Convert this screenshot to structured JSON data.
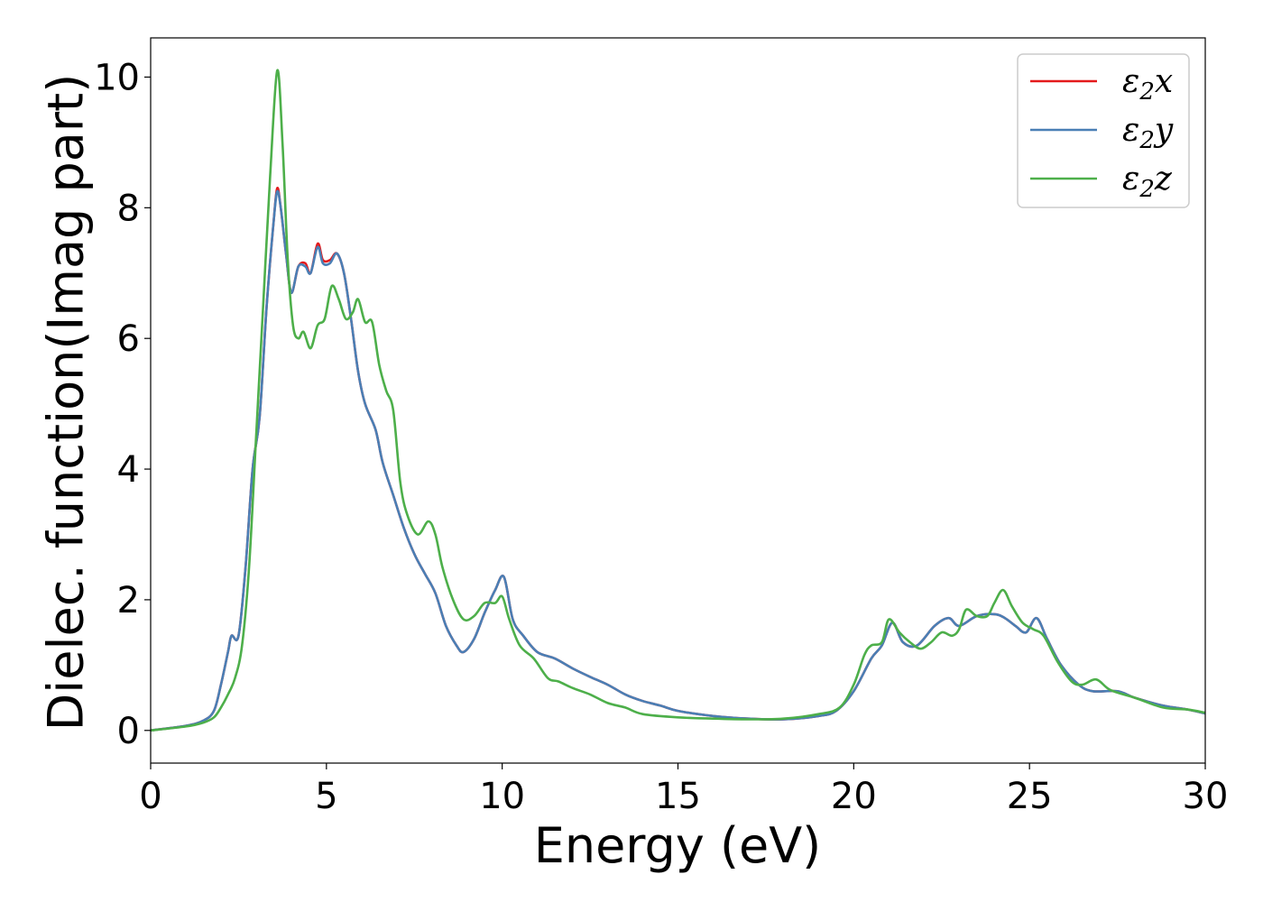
{
  "chart_data": {
    "type": "line",
    "title": "",
    "xlabel": "Energy (eV)",
    "ylabel": "Dielec. function(Imag part)",
    "xlim": [
      0,
      30
    ],
    "ylim": [
      -0.5,
      10.6
    ],
    "x_ticks": [
      "0",
      "5",
      "10",
      "15",
      "20",
      "25",
      "30"
    ],
    "y_ticks": [
      "0",
      "2",
      "4",
      "6",
      "8",
      "10"
    ],
    "grid": false,
    "legend_position": "top-right",
    "series": [
      {
        "name": "ε2x",
        "legend_base": "ε",
        "legend_sub": "2",
        "legend_var": "x",
        "color": "#e41a1c",
        "points": [
          [
            0,
            0
          ],
          [
            1.0,
            0.07
          ],
          [
            1.5,
            0.15
          ],
          [
            1.8,
            0.3
          ],
          [
            2.0,
            0.7
          ],
          [
            2.2,
            1.2
          ],
          [
            2.3,
            1.45
          ],
          [
            2.5,
            1.45
          ],
          [
            2.7,
            2.5
          ],
          [
            2.9,
            4.0
          ],
          [
            3.1,
            4.8
          ],
          [
            3.3,
            6.5
          ],
          [
            3.5,
            7.8
          ],
          [
            3.6,
            8.3
          ],
          [
            3.7,
            8.0
          ],
          [
            3.85,
            7.3
          ],
          [
            4.0,
            6.7
          ],
          [
            4.2,
            7.1
          ],
          [
            4.4,
            7.15
          ],
          [
            4.55,
            7.0
          ],
          [
            4.75,
            7.45
          ],
          [
            4.9,
            7.2
          ],
          [
            5.1,
            7.2
          ],
          [
            5.3,
            7.3
          ],
          [
            5.5,
            7.0
          ],
          [
            5.7,
            6.3
          ],
          [
            5.9,
            5.5
          ],
          [
            6.1,
            5.0
          ],
          [
            6.4,
            4.6
          ],
          [
            6.6,
            4.1
          ],
          [
            6.9,
            3.6
          ],
          [
            7.2,
            3.1
          ],
          [
            7.5,
            2.7
          ],
          [
            7.8,
            2.4
          ],
          [
            8.1,
            2.1
          ],
          [
            8.4,
            1.6
          ],
          [
            8.7,
            1.3
          ],
          [
            8.9,
            1.2
          ],
          [
            9.2,
            1.4
          ],
          [
            9.5,
            1.8
          ],
          [
            9.8,
            2.15
          ],
          [
            10.05,
            2.35
          ],
          [
            10.3,
            1.7
          ],
          [
            10.6,
            1.45
          ],
          [
            11.0,
            1.2
          ],
          [
            11.5,
            1.1
          ],
          [
            12.0,
            0.95
          ],
          [
            12.5,
            0.82
          ],
          [
            13.0,
            0.7
          ],
          [
            13.5,
            0.55
          ],
          [
            14.0,
            0.45
          ],
          [
            14.5,
            0.38
          ],
          [
            15.0,
            0.3
          ],
          [
            16.0,
            0.22
          ],
          [
            17.0,
            0.18
          ],
          [
            18.0,
            0.17
          ],
          [
            19.0,
            0.22
          ],
          [
            19.5,
            0.3
          ],
          [
            20.0,
            0.6
          ],
          [
            20.5,
            1.1
          ],
          [
            20.8,
            1.3
          ],
          [
            21.1,
            1.65
          ],
          [
            21.4,
            1.35
          ],
          [
            21.8,
            1.3
          ],
          [
            22.3,
            1.6
          ],
          [
            22.7,
            1.72
          ],
          [
            23.0,
            1.6
          ],
          [
            23.5,
            1.75
          ],
          [
            24.0,
            1.78
          ],
          [
            24.3,
            1.72
          ],
          [
            24.6,
            1.6
          ],
          [
            24.9,
            1.5
          ],
          [
            25.2,
            1.72
          ],
          [
            25.5,
            1.4
          ],
          [
            25.9,
            1.0
          ],
          [
            26.4,
            0.7
          ],
          [
            26.8,
            0.6
          ],
          [
            27.5,
            0.6
          ],
          [
            28.0,
            0.5
          ],
          [
            28.8,
            0.38
          ],
          [
            29.5,
            0.32
          ],
          [
            30.0,
            0.26
          ]
        ]
      },
      {
        "name": "ε2y",
        "legend_base": "ε",
        "legend_sub": "2",
        "legend_var": "y",
        "color": "#4a7fb5",
        "points": [
          [
            0,
            0
          ],
          [
            1.0,
            0.07
          ],
          [
            1.5,
            0.15
          ],
          [
            1.8,
            0.3
          ],
          [
            2.0,
            0.7
          ],
          [
            2.2,
            1.2
          ],
          [
            2.3,
            1.45
          ],
          [
            2.5,
            1.45
          ],
          [
            2.7,
            2.5
          ],
          [
            2.9,
            4.0
          ],
          [
            3.1,
            4.8
          ],
          [
            3.3,
            6.5
          ],
          [
            3.5,
            7.8
          ],
          [
            3.6,
            8.25
          ],
          [
            3.7,
            8.0
          ],
          [
            3.85,
            7.3
          ],
          [
            4.0,
            6.7
          ],
          [
            4.2,
            7.1
          ],
          [
            4.4,
            7.1
          ],
          [
            4.55,
            7.0
          ],
          [
            4.75,
            7.4
          ],
          [
            4.9,
            7.15
          ],
          [
            5.1,
            7.15
          ],
          [
            5.3,
            7.3
          ],
          [
            5.5,
            7.0
          ],
          [
            5.7,
            6.3
          ],
          [
            5.9,
            5.5
          ],
          [
            6.1,
            5.0
          ],
          [
            6.4,
            4.6
          ],
          [
            6.6,
            4.1
          ],
          [
            6.9,
            3.6
          ],
          [
            7.2,
            3.1
          ],
          [
            7.5,
            2.7
          ],
          [
            7.8,
            2.4
          ],
          [
            8.1,
            2.1
          ],
          [
            8.4,
            1.6
          ],
          [
            8.7,
            1.3
          ],
          [
            8.9,
            1.2
          ],
          [
            9.2,
            1.4
          ],
          [
            9.5,
            1.8
          ],
          [
            9.8,
            2.15
          ],
          [
            10.05,
            2.35
          ],
          [
            10.3,
            1.7
          ],
          [
            10.6,
            1.45
          ],
          [
            11.0,
            1.2
          ],
          [
            11.5,
            1.1
          ],
          [
            12.0,
            0.95
          ],
          [
            12.5,
            0.82
          ],
          [
            13.0,
            0.7
          ],
          [
            13.5,
            0.55
          ],
          [
            14.0,
            0.45
          ],
          [
            14.5,
            0.38
          ],
          [
            15.0,
            0.3
          ],
          [
            16.0,
            0.22
          ],
          [
            17.0,
            0.18
          ],
          [
            18.0,
            0.17
          ],
          [
            19.0,
            0.22
          ],
          [
            19.5,
            0.3
          ],
          [
            20.0,
            0.6
          ],
          [
            20.5,
            1.1
          ],
          [
            20.8,
            1.3
          ],
          [
            21.1,
            1.65
          ],
          [
            21.4,
            1.35
          ],
          [
            21.8,
            1.3
          ],
          [
            22.3,
            1.6
          ],
          [
            22.7,
            1.72
          ],
          [
            23.0,
            1.6
          ],
          [
            23.5,
            1.75
          ],
          [
            24.0,
            1.78
          ],
          [
            24.3,
            1.72
          ],
          [
            24.6,
            1.6
          ],
          [
            24.9,
            1.5
          ],
          [
            25.2,
            1.72
          ],
          [
            25.5,
            1.4
          ],
          [
            25.9,
            1.0
          ],
          [
            26.4,
            0.7
          ],
          [
            26.8,
            0.6
          ],
          [
            27.5,
            0.6
          ],
          [
            28.0,
            0.5
          ],
          [
            28.8,
            0.38
          ],
          [
            29.5,
            0.32
          ],
          [
            30.0,
            0.26
          ]
        ]
      },
      {
        "name": "ε2z",
        "legend_base": "ε",
        "legend_sub": "2",
        "legend_var": "z",
        "color": "#4daf4a",
        "points": [
          [
            0,
            0
          ],
          [
            1.0,
            0.06
          ],
          [
            1.5,
            0.12
          ],
          [
            1.8,
            0.2
          ],
          [
            2.0,
            0.35
          ],
          [
            2.2,
            0.55
          ],
          [
            2.4,
            0.8
          ],
          [
            2.6,
            1.3
          ],
          [
            2.8,
            2.5
          ],
          [
            3.0,
            4.5
          ],
          [
            3.2,
            6.5
          ],
          [
            3.4,
            8.5
          ],
          [
            3.6,
            10.1
          ],
          [
            3.75,
            9.0
          ],
          [
            3.9,
            7.2
          ],
          [
            4.05,
            6.2
          ],
          [
            4.2,
            6.0
          ],
          [
            4.35,
            6.1
          ],
          [
            4.55,
            5.85
          ],
          [
            4.75,
            6.2
          ],
          [
            4.95,
            6.3
          ],
          [
            5.15,
            6.8
          ],
          [
            5.35,
            6.6
          ],
          [
            5.55,
            6.3
          ],
          [
            5.75,
            6.4
          ],
          [
            5.9,
            6.6
          ],
          [
            6.1,
            6.25
          ],
          [
            6.3,
            6.25
          ],
          [
            6.5,
            5.6
          ],
          [
            6.7,
            5.2
          ],
          [
            6.9,
            4.9
          ],
          [
            7.1,
            3.8
          ],
          [
            7.3,
            3.3
          ],
          [
            7.6,
            3.0
          ],
          [
            7.9,
            3.2
          ],
          [
            8.1,
            3.0
          ],
          [
            8.3,
            2.5
          ],
          [
            8.6,
            2.0
          ],
          [
            8.9,
            1.7
          ],
          [
            9.2,
            1.75
          ],
          [
            9.5,
            1.95
          ],
          [
            9.8,
            1.95
          ],
          [
            10.0,
            2.05
          ],
          [
            10.2,
            1.7
          ],
          [
            10.5,
            1.3
          ],
          [
            10.9,
            1.1
          ],
          [
            11.3,
            0.8
          ],
          [
            11.6,
            0.75
          ],
          [
            12.0,
            0.65
          ],
          [
            12.5,
            0.55
          ],
          [
            13.0,
            0.42
          ],
          [
            13.5,
            0.35
          ],
          [
            14.0,
            0.25
          ],
          [
            15.0,
            0.2
          ],
          [
            16.0,
            0.18
          ],
          [
            17.0,
            0.17
          ],
          [
            18.0,
            0.18
          ],
          [
            19.0,
            0.25
          ],
          [
            19.6,
            0.35
          ],
          [
            20.0,
            0.7
          ],
          [
            20.3,
            1.15
          ],
          [
            20.5,
            1.3
          ],
          [
            20.8,
            1.35
          ],
          [
            21.0,
            1.7
          ],
          [
            21.3,
            1.5
          ],
          [
            21.6,
            1.35
          ],
          [
            21.9,
            1.25
          ],
          [
            22.2,
            1.35
          ],
          [
            22.5,
            1.5
          ],
          [
            22.8,
            1.45
          ],
          [
            23.0,
            1.55
          ],
          [
            23.2,
            1.85
          ],
          [
            23.5,
            1.75
          ],
          [
            23.8,
            1.75
          ],
          [
            24.0,
            1.95
          ],
          [
            24.25,
            2.15
          ],
          [
            24.5,
            1.9
          ],
          [
            24.8,
            1.65
          ],
          [
            25.1,
            1.55
          ],
          [
            25.4,
            1.45
          ],
          [
            25.8,
            1.05
          ],
          [
            26.2,
            0.75
          ],
          [
            26.5,
            0.7
          ],
          [
            26.9,
            0.78
          ],
          [
            27.3,
            0.62
          ],
          [
            28.0,
            0.5
          ],
          [
            28.8,
            0.35
          ],
          [
            29.5,
            0.32
          ],
          [
            30.0,
            0.27
          ]
        ]
      }
    ]
  }
}
